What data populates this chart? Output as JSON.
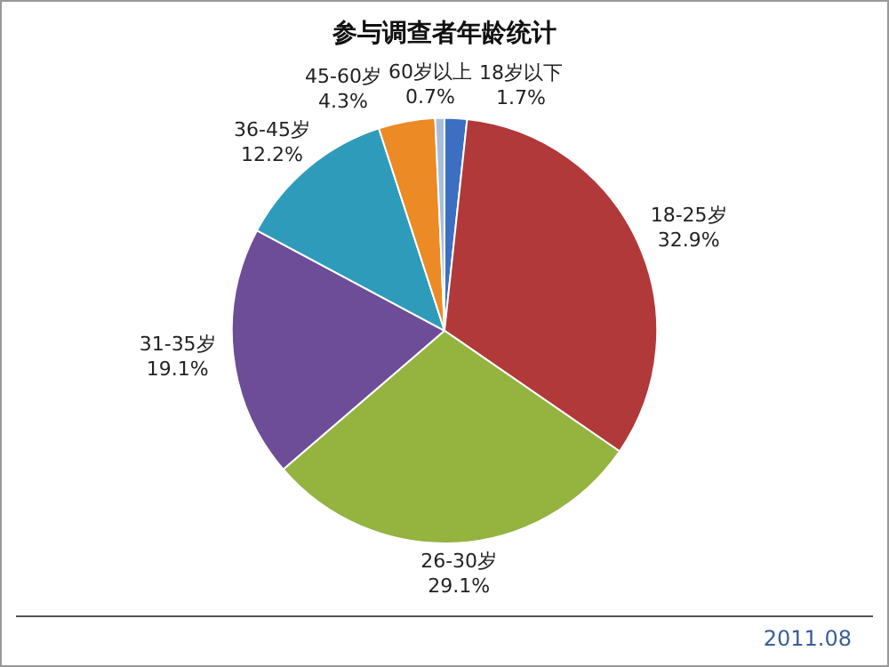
{
  "chart_data": {
    "type": "pie",
    "title": "参与调查者年龄统计",
    "categories": [
      "18岁以下",
      "18-25岁",
      "26-30岁",
      "31-35岁",
      "36-45岁",
      "45-60岁",
      "60岁以上"
    ],
    "values": [
      1.7,
      32.9,
      29.1,
      19.1,
      12.2,
      4.3,
      0.7
    ],
    "value_labels": [
      "1.7%",
      "32.9%",
      "29.1%",
      "19.1%",
      "12.2%",
      "4.3%",
      "0.7%"
    ],
    "colors": [
      "#3c6fc2",
      "#b1393a",
      "#94b33f",
      "#6d4d97",
      "#2f9bbb",
      "#ec8a25",
      "#a7bfdd"
    ],
    "annotations": [
      "2011.08"
    ]
  }
}
